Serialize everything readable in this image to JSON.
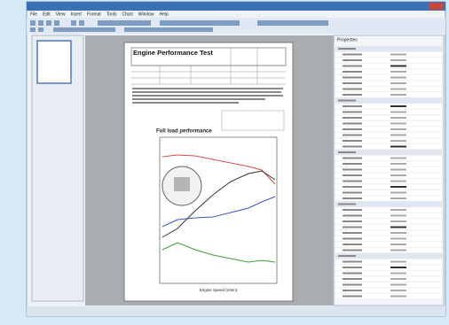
{
  "menu": [
    "File",
    "Edit",
    "View",
    "Insert",
    "Format",
    "Tools",
    "Chart",
    "Window",
    "Help"
  ],
  "document": {
    "title": "Engine Performance Test",
    "chart_title": "Full load performance",
    "x_label": "Engine Speed (r/min)"
  },
  "properties": {
    "title": "Properties"
  }
}
